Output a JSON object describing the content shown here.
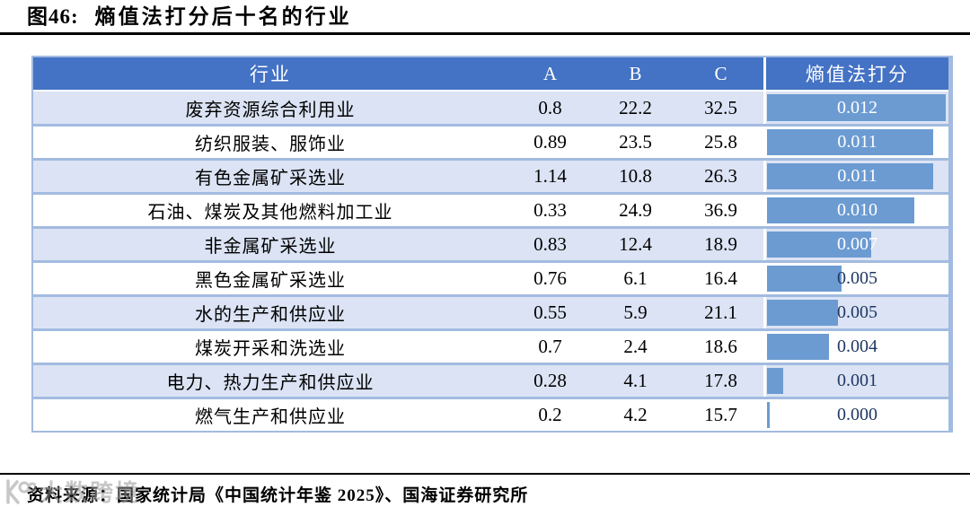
{
  "figure": {
    "label": "图46:",
    "title": "熵值法打分后十名的行业"
  },
  "table": {
    "headers": {
      "industry": "行业",
      "a": "A",
      "b": "B",
      "c": "C",
      "score": "熵值法打分"
    },
    "rows": [
      {
        "industry": "废弃资源综合利用业",
        "a": "0.8",
        "b": "22.2",
        "c": "32.5",
        "score": "0.012",
        "bar_pct": 99
      },
      {
        "industry": "纺织服装、服饰业",
        "a": "0.89",
        "b": "23.5",
        "c": "25.8",
        "score": "0.011",
        "bar_pct": 92
      },
      {
        "industry": "有色金属矿采选业",
        "a": "1.14",
        "b": "10.8",
        "c": "26.3",
        "score": "0.011",
        "bar_pct": 92
      },
      {
        "industry": "石油、煤炭及其他燃料加工业",
        "a": "0.33",
        "b": "24.9",
        "c": "36.9",
        "score": "0.010",
        "bar_pct": 82
      },
      {
        "industry": "非金属矿采选业",
        "a": "0.83",
        "b": "12.4",
        "c": "18.9",
        "score": "0.007",
        "bar_pct": 58
      },
      {
        "industry": "黑色金属矿采选业",
        "a": "0.76",
        "b": "6.1",
        "c": "16.4",
        "score": "0.005",
        "bar_pct": 42
      },
      {
        "industry": "水的生产和供应业",
        "a": "0.55",
        "b": "5.9",
        "c": "21.1",
        "score": "0.005",
        "bar_pct": 40
      },
      {
        "industry": "煤炭开采和洗选业",
        "a": "0.7",
        "b": "2.4",
        "c": "18.6",
        "score": "0.004",
        "bar_pct": 35
      },
      {
        "industry": "电力、热力生产和供应业",
        "a": "0.28",
        "b": "4.1",
        "c": "17.8",
        "score": "0.001",
        "bar_pct": 10
      },
      {
        "industry": "燃气生产和供应业",
        "a": "0.2",
        "b": "4.2",
        "c": "15.7",
        "score": "0.000",
        "bar_pct": 2.5
      }
    ]
  },
  "chart_data": {
    "type": "table",
    "title": "图46: 熵值法打分后十名的行业",
    "columns": [
      "行业",
      "A",
      "B",
      "C",
      "熵值法打分"
    ],
    "rows": [
      [
        "废弃资源综合利用业",
        0.8,
        22.2,
        32.5,
        0.012
      ],
      [
        "纺织服装、服饰业",
        0.89,
        23.5,
        25.8,
        0.011
      ],
      [
        "有色金属矿采选业",
        1.14,
        10.8,
        26.3,
        0.011
      ],
      [
        "石油、煤炭及其他燃料加工业",
        0.33,
        24.9,
        36.9,
        0.01
      ],
      [
        "非金属矿采选业",
        0.83,
        12.4,
        18.9,
        0.007
      ],
      [
        "黑色金属矿采选业",
        0.76,
        6.1,
        16.4,
        0.005
      ],
      [
        "水的生产和供应业",
        0.55,
        5.9,
        21.1,
        0.005
      ],
      [
        "煤炭开采和洗选业",
        0.7,
        2.4,
        18.6,
        0.004
      ],
      [
        "电力、热力生产和供应业",
        0.28,
        4.1,
        17.8,
        0.001
      ],
      [
        "燃气生产和供应业",
        0.2,
        4.2,
        15.7,
        0.0
      ]
    ],
    "databar_column": "熵值法打分",
    "databar_max": 0.012
  },
  "source": {
    "prefix": "资料来源：",
    "text": "国家统计局《中国统计年鉴 2025》、国海证券研究所"
  },
  "watermark": {
    "text": "大数跨境"
  },
  "colors": {
    "header_bg": "#4472C4",
    "bar": "#6C9BD2",
    "row_alt": "#DBE3F4",
    "grid": "#A3BBE0",
    "navy": "#1F3864",
    "ink": "#000000",
    "watermark": "#9B9B9B"
  }
}
